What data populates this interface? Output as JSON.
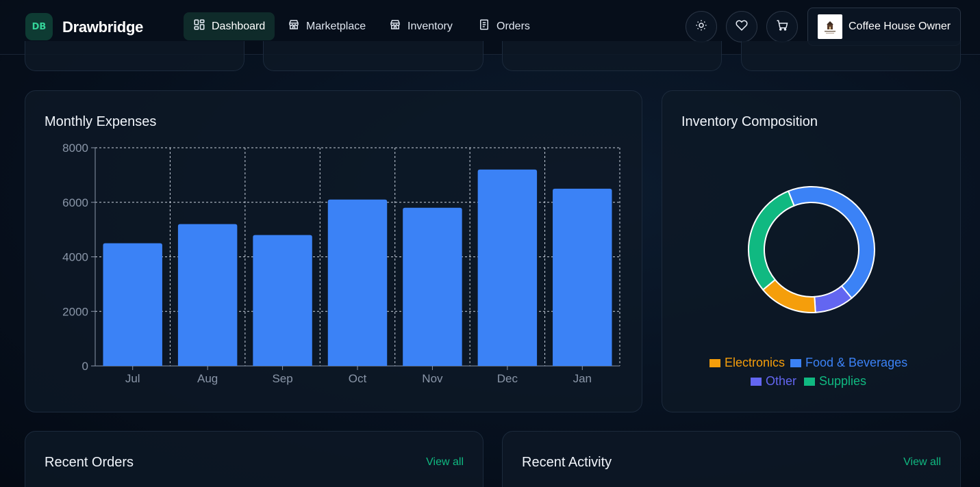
{
  "header": {
    "logo_badge": "DB",
    "brand": "Drawbridge",
    "nav": [
      {
        "label": "Dashboard",
        "icon": "grid-icon",
        "active": true
      },
      {
        "label": "Marketplace",
        "icon": "store-icon",
        "active": false
      },
      {
        "label": "Inventory",
        "icon": "store-icon",
        "active": false
      },
      {
        "label": "Orders",
        "icon": "document-icon",
        "active": false
      }
    ],
    "actions": [
      "sun-icon",
      "heart-icon",
      "cart-icon"
    ],
    "user": {
      "name": "Coffee House Owner",
      "avatar": "coffee-house-logo"
    }
  },
  "expenses": {
    "title": "Monthly Expenses"
  },
  "composition": {
    "title": "Inventory Composition"
  },
  "recent_orders": {
    "title": "Recent Orders",
    "view_all": "View all"
  },
  "recent_activity": {
    "title": "Recent Activity",
    "view_all": "View all"
  },
  "colors": {
    "accent": "#10b981",
    "bar": "#3b82f6",
    "electronics": "#f59e0b",
    "food": "#3b82f6",
    "other": "#6366f1",
    "supplies": "#10b981"
  },
  "chart_data": [
    {
      "type": "bar",
      "title": "Monthly Expenses",
      "categories": [
        "Jul",
        "Aug",
        "Sep",
        "Oct",
        "Nov",
        "Dec",
        "Jan"
      ],
      "values": [
        4500,
        5200,
        4800,
        6100,
        5800,
        7200,
        6500
      ],
      "yticks": [
        "0",
        "2000",
        "4000",
        "6000",
        "8000"
      ],
      "ylim": [
        0,
        8000
      ],
      "grid": true,
      "xlabel": "",
      "ylabel": ""
    },
    {
      "type": "pie",
      "variant": "doughnut",
      "title": "Inventory Composition",
      "labels": [
        "Food & Beverages",
        "Other",
        "Electronics",
        "Supplies"
      ],
      "values": [
        45,
        10,
        15,
        30
      ],
      "legend": [
        "Electronics",
        "Food & Beverages",
        "Other",
        "Supplies"
      ],
      "legend_position": "bottom"
    }
  ]
}
